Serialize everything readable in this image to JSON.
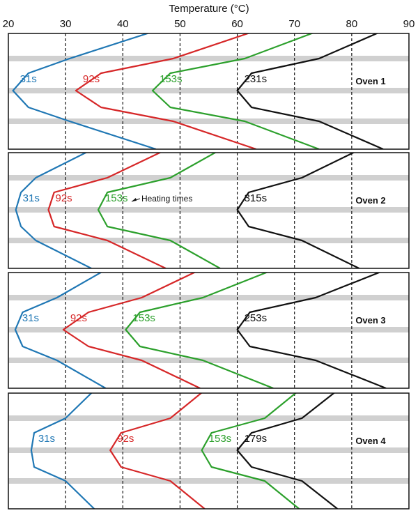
{
  "chart_data": {
    "type": "line",
    "title": "Temperature (°C)",
    "x_axis": {
      "label": "Temperature (°C)",
      "range": [
        20,
        90
      ],
      "ticks": [
        20,
        30,
        40,
        50,
        60,
        70,
        80,
        90
      ],
      "tick_labels": [
        "20",
        "30",
        "40",
        "50",
        "60",
        "70",
        "80",
        "90"
      ],
      "gridlines": "dashed vertical at 30, 40, 50, 60, 70, 80"
    },
    "y_profile_levels": [
      0,
      1,
      2,
      3,
      4,
      5,
      6
    ],
    "colors": {
      "31s": "#1f77b4",
      "92s": "#d62728",
      "153s": "#2ca02c",
      "final": "#111111",
      "band": "#d0d0d0",
      "grid": "#111111"
    },
    "annotation": {
      "text": "Heating times",
      "panel": "Oven 2",
      "points_to": "153s"
    },
    "panels": [
      {
        "name": "Oven 1",
        "series": [
          {
            "name": "31s",
            "values": [
              45.8,
              30.7,
              23.5,
              20.8,
              23.5,
              30.7,
              45.8
            ]
          },
          {
            "name": "92s",
            "values": [
              63.3,
              48.8,
              36.2,
              31.8,
              36.2,
              48.8,
              63.3
            ]
          },
          {
            "name": "153s",
            "values": [
              74.3,
              61.3,
              48.3,
              45.2,
              48.3,
              61.3,
              74.3
            ]
          },
          {
            "name": "231s",
            "values": [
              85.5,
              74.3,
              62.5,
              60.0,
              62.5,
              74.3,
              85.5
            ]
          }
        ]
      },
      {
        "name": "Oven 2",
        "series": [
          {
            "name": "31s",
            "values": [
              34.5,
              24.8,
              22.2,
              21.3,
              22.2,
              24.8,
              34.5
            ]
          },
          {
            "name": "92s",
            "values": [
              47.5,
              37.3,
              28.0,
              27.0,
              28.0,
              37.3,
              47.5
            ]
          },
          {
            "name": "153s",
            "values": [
              57.0,
              48.3,
              37.3,
              35.7,
              37.3,
              48.3,
              57.0
            ]
          },
          {
            "name": "315s",
            "values": [
              81.3,
              71.3,
              62.0,
              60.0,
              62.0,
              71.3,
              81.3
            ]
          }
        ]
      },
      {
        "name": "Oven 3",
        "series": [
          {
            "name": "31s",
            "values": [
              37.0,
              28.5,
              22.5,
              21.2,
              22.5,
              28.5,
              37.0
            ]
          },
          {
            "name": "92s",
            "values": [
              53.5,
              43.3,
              34.0,
              29.6,
              34.0,
              43.3,
              53.5
            ]
          },
          {
            "name": "153s",
            "values": [
              66.3,
              54.0,
              43.0,
              40.5,
              43.0,
              54.0,
              66.3
            ]
          },
          {
            "name": "253s",
            "values": [
              86.0,
              73.7,
              62.2,
              60.0,
              62.2,
              73.7,
              86.0
            ]
          }
        ]
      },
      {
        "name": "Oven 4",
        "series": [
          {
            "name": "31s",
            "values": [
              35.0,
              30.0,
              24.5,
              24.0,
              24.5,
              30.0,
              35.0
            ]
          },
          {
            "name": "92s",
            "values": [
              54.3,
              48.3,
              39.7,
              37.8,
              39.7,
              48.3,
              54.3
            ]
          },
          {
            "name": "153s",
            "values": [
              70.8,
              64.8,
              55.5,
              53.8,
              55.5,
              64.8,
              70.8
            ]
          },
          {
            "name": "179s",
            "values": [
              77.5,
              71.3,
              62.5,
              60.0,
              62.5,
              71.3,
              77.5
            ]
          }
        ]
      }
    ]
  }
}
